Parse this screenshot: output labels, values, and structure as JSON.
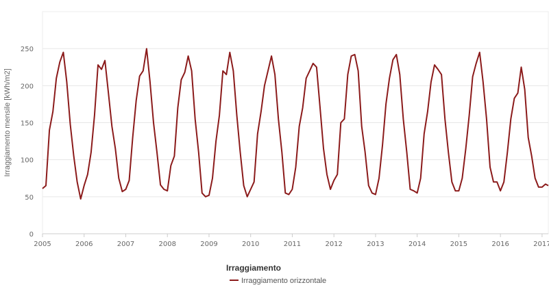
{
  "chart_data": {
    "type": "line",
    "title": "",
    "ylabel": "Irraggiamento mensile [kWh/m2]",
    "xlabel": "",
    "ylim": [
      0,
      300
    ],
    "yticks": [
      0,
      50,
      100,
      150,
      200,
      250
    ],
    "xlim": [
      2005,
      2017.15
    ],
    "xticks": [
      "2005",
      "2006",
      "2007",
      "2008",
      "2009",
      "2010",
      "2011",
      "2012",
      "2013",
      "2014",
      "2015",
      "2016",
      "2017"
    ],
    "grid": true,
    "legend": {
      "title": "Irraggiamento",
      "position": "bottom-center"
    },
    "series": [
      {
        "name": "Irraggiamento orizzontale",
        "color": "#8b1a1a",
        "x": [
          2005.0,
          2005.083,
          2005.167,
          2005.25,
          2005.333,
          2005.417,
          2005.5,
          2005.583,
          2005.667,
          2005.75,
          2005.833,
          2005.917,
          2006.0,
          2006.083,
          2006.167,
          2006.25,
          2006.333,
          2006.417,
          2006.5,
          2006.583,
          2006.667,
          2006.75,
          2006.833,
          2006.917,
          2007.0,
          2007.083,
          2007.167,
          2007.25,
          2007.333,
          2007.417,
          2007.5,
          2007.583,
          2007.667,
          2007.75,
          2007.833,
          2007.917,
          2008.0,
          2008.083,
          2008.167,
          2008.25,
          2008.333,
          2008.417,
          2008.5,
          2008.583,
          2008.667,
          2008.75,
          2008.833,
          2008.917,
          2009.0,
          2009.083,
          2009.167,
          2009.25,
          2009.333,
          2009.417,
          2009.5,
          2009.583,
          2009.667,
          2009.75,
          2009.833,
          2009.917,
          2010.0,
          2010.083,
          2010.167,
          2010.25,
          2010.333,
          2010.417,
          2010.5,
          2010.583,
          2010.667,
          2010.75,
          2010.833,
          2010.917,
          2011.0,
          2011.083,
          2011.167,
          2011.25,
          2011.333,
          2011.417,
          2011.5,
          2011.583,
          2011.667,
          2011.75,
          2011.833,
          2011.917,
          2012.0,
          2012.083,
          2012.167,
          2012.25,
          2012.333,
          2012.417,
          2012.5,
          2012.583,
          2012.667,
          2012.75,
          2012.833,
          2012.917,
          2013.0,
          2013.083,
          2013.167,
          2013.25,
          2013.333,
          2013.417,
          2013.5,
          2013.583,
          2013.667,
          2013.75,
          2013.833,
          2013.917,
          2014.0,
          2014.083,
          2014.167,
          2014.25,
          2014.333,
          2014.417,
          2014.5,
          2014.583,
          2014.667,
          2014.75,
          2014.833,
          2014.917,
          2015.0,
          2015.083,
          2015.167,
          2015.25,
          2015.333,
          2015.417,
          2015.5,
          2015.583,
          2015.667,
          2015.75,
          2015.833,
          2015.917,
          2016.0,
          2016.083,
          2016.167,
          2016.25,
          2016.333,
          2016.417,
          2016.5,
          2016.583,
          2016.667,
          2016.75,
          2016.833,
          2016.917,
          2017.0,
          2017.083,
          2017.15
        ],
        "y": [
          61,
          65,
          140,
          165,
          210,
          232,
          245,
          205,
          148,
          105,
          70,
          47,
          65,
          80,
          110,
          160,
          228,
          222,
          234,
          190,
          145,
          115,
          75,
          57,
          60,
          72,
          130,
          180,
          213,
          220,
          250,
          205,
          150,
          110,
          66,
          60,
          58,
          92,
          105,
          170,
          208,
          218,
          240,
          220,
          155,
          110,
          55,
          50,
          52,
          75,
          125,
          160,
          220,
          215,
          245,
          220,
          160,
          110,
          65,
          50,
          60,
          70,
          135,
          165,
          200,
          220,
          240,
          215,
          155,
          110,
          55,
          53,
          60,
          90,
          145,
          170,
          210,
          220,
          230,
          225,
          170,
          115,
          80,
          60,
          72,
          80,
          150,
          155,
          215,
          240,
          242,
          220,
          145,
          110,
          65,
          55,
          53,
          75,
          120,
          175,
          210,
          235,
          242,
          215,
          155,
          110,
          60,
          58,
          55,
          75,
          135,
          165,
          205,
          228,
          222,
          215,
          155,
          110,
          70,
          58,
          58,
          75,
          115,
          160,
          212,
          230,
          245,
          205,
          155,
          90,
          70,
          70,
          58,
          70,
          110,
          155,
          183,
          190,
          225,
          195,
          130,
          105,
          75,
          63,
          63,
          67,
          65
        ]
      }
    ]
  }
}
